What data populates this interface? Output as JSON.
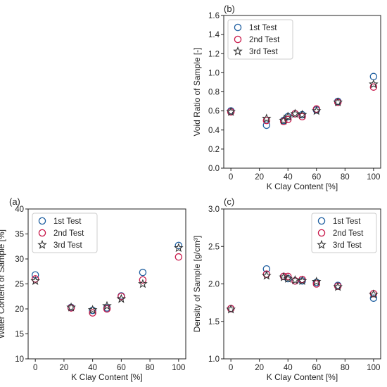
{
  "chart_data": [
    {
      "id": "b",
      "panel_label": "(b)",
      "type": "scatter",
      "xlabel": "K Clay Content [%]",
      "ylabel": "Void Ratio of Sample [-]",
      "xlim": [
        -5,
        105
      ],
      "ylim": [
        0.0,
        1.6
      ],
      "xticks": [
        0,
        20,
        40,
        60,
        80,
        100
      ],
      "yticks": [
        0.0,
        0.2,
        0.4,
        0.6,
        0.8,
        1.0,
        1.2,
        1.4,
        1.6
      ],
      "ytick_labels": [
        "0.0",
        "0.2",
        "0.4",
        "0.6",
        "0.8",
        "1.0",
        "1.2",
        "1.4",
        "1.6"
      ],
      "grid": false,
      "legend_position": "top-left",
      "x": [
        0,
        25,
        37,
        40,
        45,
        50,
        60,
        75,
        100
      ],
      "series": [
        {
          "name": "1st Test",
          "marker": "circle",
          "color": "#1f5fa0",
          "values": [
            0.6,
            0.45,
            0.5,
            0.54,
            0.57,
            0.56,
            0.61,
            0.7,
            0.96
          ]
        },
        {
          "name": "2nd Test",
          "marker": "circle",
          "color": "#c8184a",
          "values": [
            0.59,
            0.5,
            0.49,
            0.51,
            0.57,
            0.54,
            0.62,
            0.69,
            0.85
          ]
        },
        {
          "name": "3rd Test",
          "marker": "star",
          "color": "#333333",
          "values": [
            0.59,
            0.52,
            0.5,
            0.54,
            0.57,
            0.56,
            0.6,
            0.69,
            0.88
          ]
        }
      ]
    },
    {
      "id": "a",
      "panel_label": "(a)",
      "type": "scatter",
      "xlabel": "K Clay Content [%]",
      "ylabel": "Water Content of Sample [%]",
      "xlim": [
        -5,
        105
      ],
      "ylim": [
        10,
        40
      ],
      "xticks": [
        0,
        20,
        40,
        60,
        80,
        100
      ],
      "yticks": [
        10,
        15,
        20,
        25,
        30,
        35,
        40
      ],
      "ytick_labels": [
        "10",
        "15",
        "20",
        "25",
        "30",
        "35",
        "40"
      ],
      "grid": false,
      "legend_position": "top-left",
      "x": [
        0,
        25,
        40,
        50,
        60,
        75,
        100
      ],
      "series": [
        {
          "name": "1st Test",
          "marker": "circle",
          "color": "#1f5fa0",
          "values": [
            26.8,
            20.3,
            19.7,
            20.2,
            22.6,
            27.3,
            32.7
          ]
        },
        {
          "name": "2nd Test",
          "marker": "circle",
          "color": "#c8184a",
          "values": [
            26.0,
            20.2,
            19.2,
            20.0,
            22.5,
            25.8,
            30.4
          ]
        },
        {
          "name": "3rd Test",
          "marker": "star",
          "color": "#333333",
          "values": [
            25.6,
            20.3,
            19.8,
            20.6,
            22.0,
            25.0,
            32.2
          ]
        }
      ]
    },
    {
      "id": "c",
      "panel_label": "(c)",
      "type": "scatter",
      "xlabel": "K Clay Content [%]",
      "ylabel": "Density of Sample [g/cm³]",
      "xlim": [
        -5,
        105
      ],
      "ylim": [
        1.0,
        3.0
      ],
      "xticks": [
        0,
        20,
        40,
        60,
        80,
        100
      ],
      "yticks": [
        1.0,
        1.5,
        2.0,
        2.5,
        3.0
      ],
      "ytick_labels": [
        "1.0",
        "1.5",
        "2.0",
        "2.5",
        "3.0"
      ],
      "grid": false,
      "legend_position": "top-right",
      "x": [
        0,
        25,
        37,
        40,
        45,
        50,
        60,
        75,
        100
      ],
      "series": [
        {
          "name": "1st Test",
          "marker": "circle",
          "color": "#1f5fa0",
          "values": [
            1.67,
            2.2,
            2.1,
            2.07,
            2.04,
            2.04,
            2.02,
            1.98,
            1.81
          ]
        },
        {
          "name": "2nd Test",
          "marker": "circle",
          "color": "#c8184a",
          "values": [
            1.67,
            2.13,
            2.1,
            2.1,
            2.04,
            2.06,
            2.0,
            1.97,
            1.87
          ]
        },
        {
          "name": "3rd Test",
          "marker": "star",
          "color": "#333333",
          "values": [
            1.66,
            2.11,
            2.09,
            2.07,
            2.05,
            2.04,
            2.03,
            1.96,
            1.86
          ]
        }
      ]
    }
  ]
}
